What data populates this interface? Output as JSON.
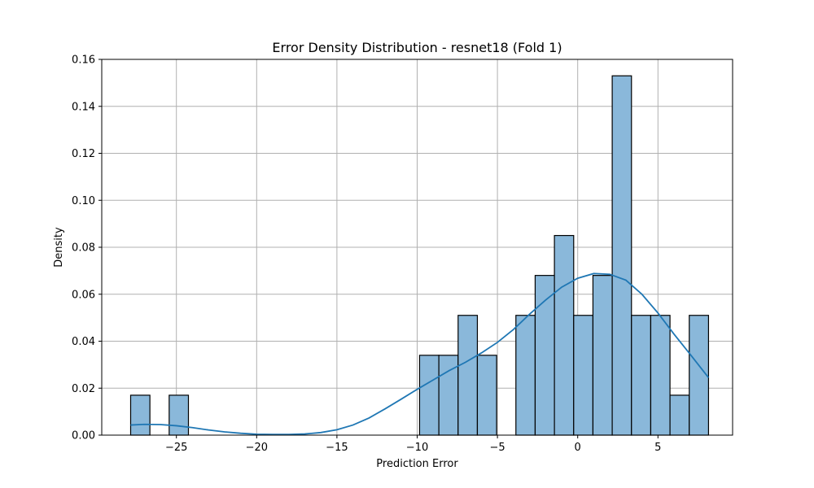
{
  "chart_data": {
    "type": "bar",
    "subtype": "histogram-with-kde",
    "title": "Error Density Distribution - resnet18 (Fold 1)",
    "xlabel": "Prediction Error",
    "ylabel": "Density",
    "xlim": [
      -29.65,
      9.65
    ],
    "ylim": [
      0,
      0.16
    ],
    "xticks": [
      -25,
      -20,
      -15,
      -10,
      -5,
      0,
      5
    ],
    "xtick_labels": [
      "−25",
      "−20",
      "−15",
      "−10",
      "−5",
      "0",
      "5"
    ],
    "yticks": [
      0,
      0.02,
      0.04,
      0.06,
      0.08,
      0.1,
      0.12,
      0.14,
      0.16
    ],
    "ytick_labels": [
      "0.00",
      "0.02",
      "0.04",
      "0.06",
      "0.08",
      "0.10",
      "0.12",
      "0.14",
      "0.16"
    ],
    "grid": true,
    "bin_start": -27.85,
    "bin_width": 1.2,
    "bins": [
      {
        "x0": -27.85,
        "x1": -26.65,
        "density": 0.017
      },
      {
        "x0": -25.45,
        "x1": -24.25,
        "density": 0.017
      },
      {
        "x0": -9.85,
        "x1": -8.65,
        "density": 0.034
      },
      {
        "x0": -8.65,
        "x1": -7.45,
        "density": 0.034
      },
      {
        "x0": -7.45,
        "x1": -6.25,
        "density": 0.051
      },
      {
        "x0": -6.25,
        "x1": -5.05,
        "density": 0.034
      },
      {
        "x0": -3.85,
        "x1": -2.65,
        "density": 0.051
      },
      {
        "x0": -2.65,
        "x1": -1.45,
        "density": 0.068
      },
      {
        "x0": -1.45,
        "x1": -0.25,
        "density": 0.085
      },
      {
        "x0": -0.25,
        "x1": 0.95,
        "density": 0.051
      },
      {
        "x0": 0.95,
        "x1": 2.15,
        "density": 0.068
      },
      {
        "x0": 2.15,
        "x1": 3.35,
        "density": 0.153
      },
      {
        "x0": 3.35,
        "x1": 4.55,
        "density": 0.051
      },
      {
        "x0": 4.55,
        "x1": 5.75,
        "density": 0.051
      },
      {
        "x0": 5.75,
        "x1": 6.95,
        "density": 0.017
      },
      {
        "x0": 6.95,
        "x1": 8.15,
        "density": 0.051
      }
    ],
    "kde": {
      "x": [
        -27.85,
        -27,
        -26,
        -25,
        -24,
        -23,
        -22,
        -21,
        -20,
        -19,
        -18,
        -17,
        -16,
        -15,
        -14,
        -13,
        -12,
        -11,
        -10,
        -9,
        -8,
        -7,
        -6,
        -5,
        -4,
        -3,
        -2,
        -1,
        0,
        1,
        2,
        3,
        4,
        5,
        6,
        7,
        8.15
      ],
      "y": [
        0.0043,
        0.0046,
        0.0045,
        0.004,
        0.0032,
        0.0022,
        0.0014,
        0.0008,
        0.0004,
        0.0003,
        0.0003,
        0.0005,
        0.0011,
        0.0023,
        0.0043,
        0.0073,
        0.0112,
        0.0153,
        0.0195,
        0.0235,
        0.0275,
        0.031,
        0.035,
        0.0395,
        0.045,
        0.0515,
        0.0575,
        0.063,
        0.0668,
        0.0688,
        0.0685,
        0.066,
        0.06,
        0.052,
        0.043,
        0.0345,
        0.0245
      ]
    },
    "colors": {
      "bar_fill": "#8ab8da",
      "bar_edge": "#000000",
      "kde_line": "#1f77b4",
      "grid": "#b0b0b0"
    }
  }
}
